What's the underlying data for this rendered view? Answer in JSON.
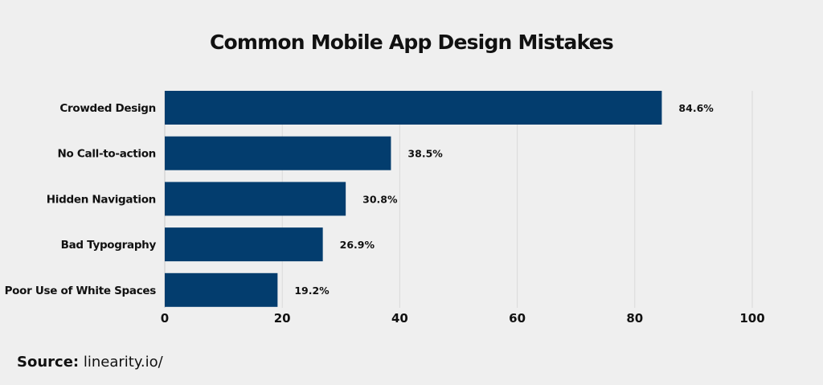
{
  "chart_data": {
    "type": "bar",
    "orientation": "horizontal",
    "title": "Common Mobile App Design Mistakes",
    "categories": [
      "Crowded Design",
      "No Call-to-action",
      "Hidden Navigation",
      "Bad Typography",
      "Poor Use of White Spaces"
    ],
    "values": [
      84.6,
      38.5,
      30.8,
      26.9,
      19.2
    ],
    "data_labels": [
      "84.6%",
      "38.5%",
      "30.8%",
      "26.9%",
      "19.2%"
    ],
    "xlim": [
      0,
      100
    ],
    "xticks": [
      "0",
      "20",
      "40",
      "60",
      "80",
      "100"
    ],
    "xlabel": "",
    "ylabel": "",
    "grid": "vertical",
    "bar_color": "#033d6e"
  },
  "source": {
    "label": "Source:",
    "value": "linearity.io/"
  }
}
